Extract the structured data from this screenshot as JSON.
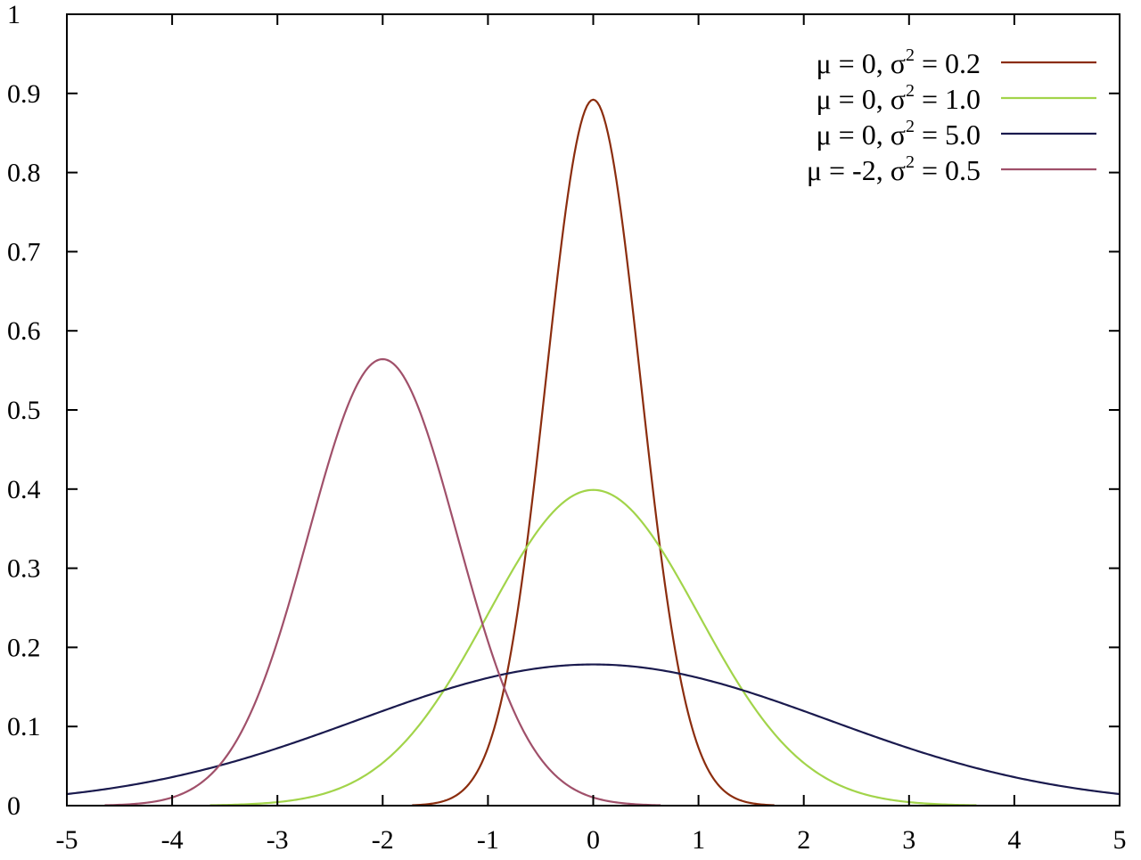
{
  "chart_data": {
    "type": "line",
    "title": "",
    "xlabel": "",
    "ylabel": "",
    "xlim": [
      -5,
      5
    ],
    "ylim": [
      0,
      1
    ],
    "x_ticks": [
      "-5",
      "-4",
      "-3",
      "-2",
      "-1",
      "0",
      "1",
      "2",
      "3",
      "4",
      "5"
    ],
    "y_ticks": [
      "0",
      "0.1",
      "0.2",
      "0.3",
      "0.4",
      "0.5",
      "0.6",
      "0.7",
      "0.8",
      "0.9",
      "1"
    ],
    "grid": false,
    "legend_position": "top-right",
    "series": [
      {
        "name": "μ =  0, σ2 = 0.2",
        "legend_parts": [
          "μ =  0, σ",
          "2",
          " = 0.2"
        ],
        "color": "#8b2d0e",
        "function": "gaussian",
        "mu": 0,
        "variance": 0.2,
        "peak": 0.89
      },
      {
        "name": "μ =  0, σ2 = 1.0",
        "legend_parts": [
          "μ =  0, σ",
          "2",
          " = 1.0"
        ],
        "color": "#a2d44a",
        "function": "gaussian",
        "mu": 0,
        "variance": 1.0,
        "peak": 0.4
      },
      {
        "name": "μ =  0, σ2 = 5.0",
        "legend_parts": [
          "μ =  0, σ",
          "2",
          " = 5.0"
        ],
        "color": "#1a1a4e",
        "function": "gaussian",
        "mu": 0,
        "variance": 5.0,
        "peak": 0.18
      },
      {
        "name": "μ = -2, σ2 = 0.5",
        "legend_parts": [
          "μ = -2, σ",
          "2",
          " = 0.5"
        ],
        "color": "#a0506a",
        "function": "gaussian",
        "mu": -2,
        "variance": 0.5,
        "peak": 0.56
      }
    ]
  }
}
